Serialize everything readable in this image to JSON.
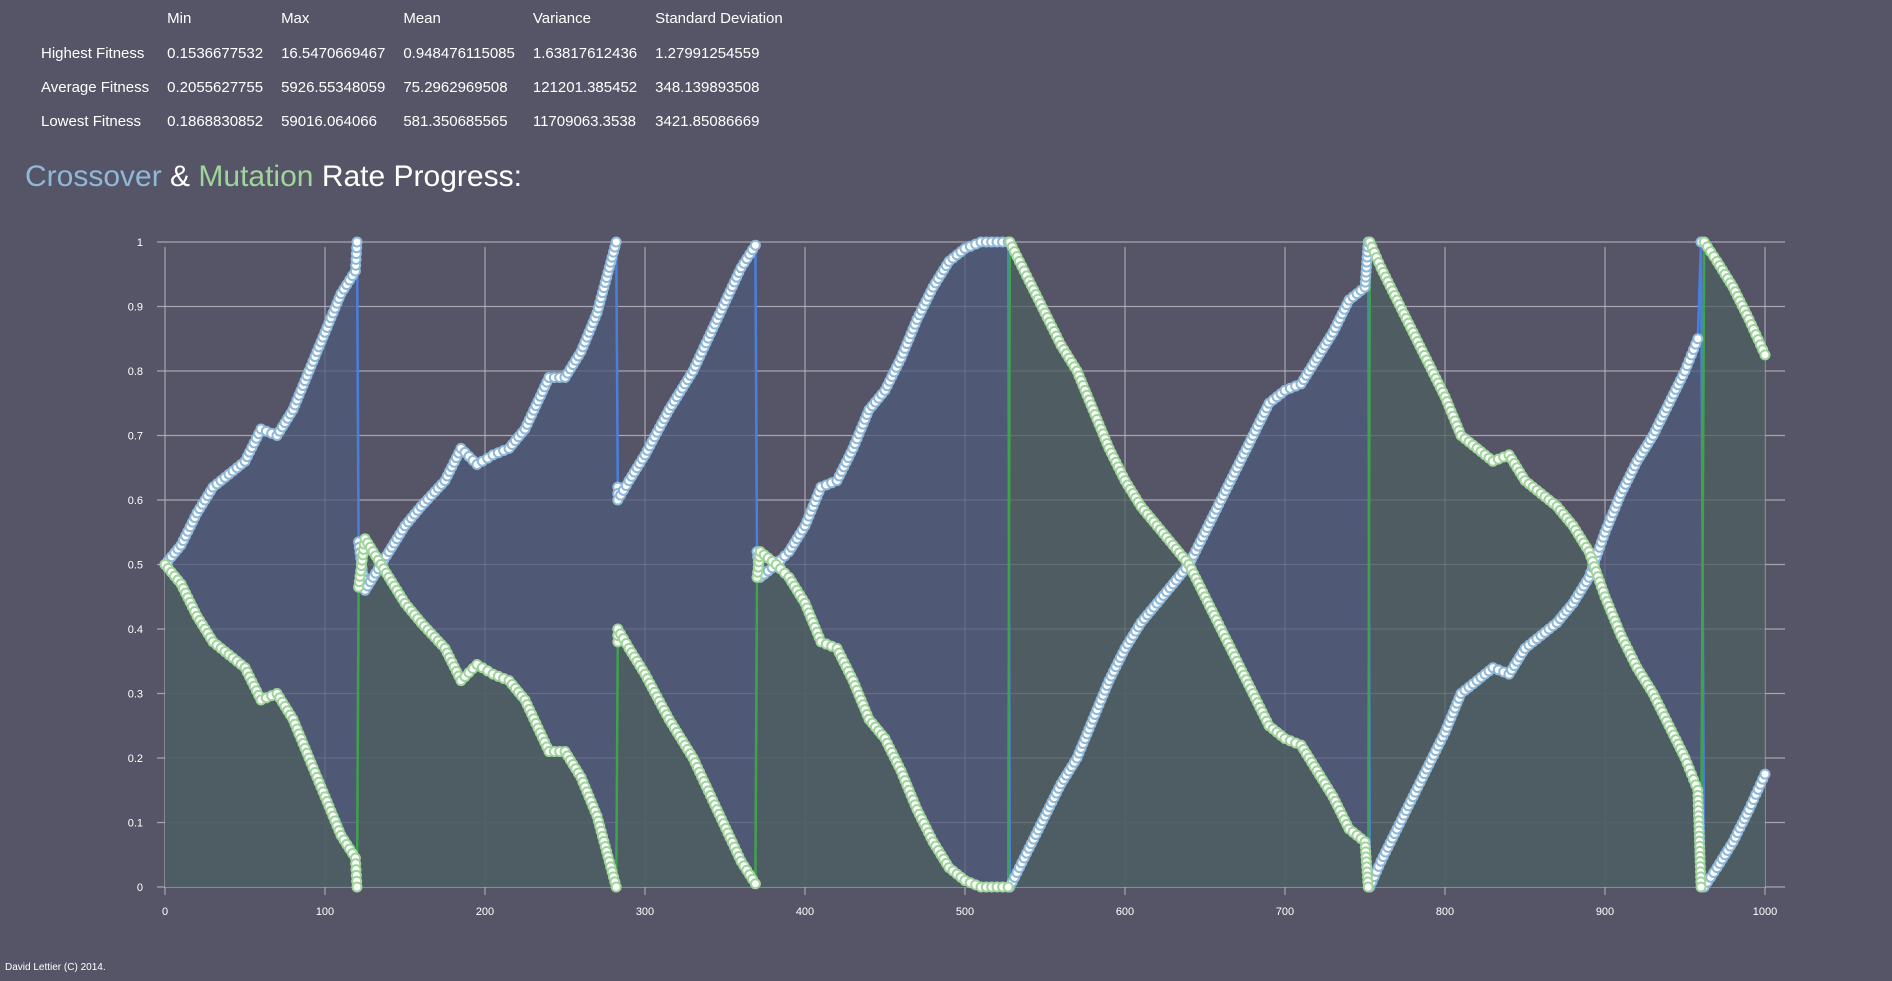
{
  "stats": {
    "columns": [
      "",
      "Min",
      "Max",
      "Mean",
      "Variance",
      "Standard Deviation"
    ],
    "rows": [
      {
        "label": "Highest Fitness",
        "values": [
          "0.1536677532",
          "16.5470669467",
          "0.948476115085",
          "1.63817612436",
          "1.27991254559"
        ]
      },
      {
        "label": "Average Fitness",
        "values": [
          "0.2055627755",
          "5926.55348059",
          "75.2962969508",
          "121201.385452",
          "348.139893508"
        ]
      },
      {
        "label": "Lowest Fitness",
        "values": [
          "0.1868830852",
          "59016.064066",
          "581.350685565",
          "11709063.3538",
          "3421.85086669"
        ]
      }
    ]
  },
  "heading": {
    "crossover": "Crossover",
    "amp": "&",
    "mutation": "Mutation",
    "rest": "Rate Progress:"
  },
  "colors": {
    "background": "#565567",
    "crossover": "#8fb8d8",
    "mutation": "#9fd49a",
    "crossover_line": "#4a7fe0",
    "mutation_line": "#3fa34a",
    "crossover_fill": "#4e5a78",
    "mutation_fill": "#4d5f5f",
    "grid": "#b4b4bc"
  },
  "chart_data": {
    "type": "area",
    "x_range": [
      0,
      1000
    ],
    "y_range": [
      0,
      1
    ],
    "x_ticks": [
      "0",
      "100",
      "200",
      "300",
      "400",
      "500",
      "600",
      "700",
      "800",
      "900",
      "1000"
    ],
    "y_ticks": [
      "0",
      "0.1",
      "0.2",
      "0.3",
      "0.4",
      "0.5",
      "0.6",
      "0.7",
      "0.8",
      "0.9",
      "1"
    ],
    "grid": true,
    "series": [
      {
        "key": "crossover",
        "points": [
          [
            0,
            0.5
          ],
          [
            10,
            0.53
          ],
          [
            20,
            0.58
          ],
          [
            30,
            0.62
          ],
          [
            40,
            0.64
          ],
          [
            50,
            0.66
          ],
          [
            60,
            0.71
          ],
          [
            70,
            0.7
          ],
          [
            80,
            0.74
          ],
          [
            90,
            0.8
          ],
          [
            100,
            0.86
          ],
          [
            110,
            0.92
          ],
          [
            119,
            0.955
          ],
          [
            120,
            1.0
          ],
          [
            121,
            0.535
          ],
          [
            125,
            0.46
          ],
          [
            135,
            0.5
          ],
          [
            150,
            0.56
          ],
          [
            160,
            0.59
          ],
          [
            175,
            0.63
          ],
          [
            185,
            0.68
          ],
          [
            195,
            0.655
          ],
          [
            205,
            0.67
          ],
          [
            215,
            0.68
          ],
          [
            225,
            0.71
          ],
          [
            240,
            0.79
          ],
          [
            250,
            0.79
          ],
          [
            260,
            0.83
          ],
          [
            270,
            0.89
          ],
          [
            282,
            1.0
          ],
          [
            283,
            0.62
          ],
          [
            283,
            0.6
          ],
          [
            290,
            0.63
          ],
          [
            300,
            0.67
          ],
          [
            315,
            0.74
          ],
          [
            330,
            0.8
          ],
          [
            345,
            0.88
          ],
          [
            360,
            0.96
          ],
          [
            369,
            0.995
          ],
          [
            370,
            0.52
          ],
          [
            372,
            0.48
          ],
          [
            382,
            0.5
          ],
          [
            390,
            0.52
          ],
          [
            400,
            0.56
          ],
          [
            410,
            0.62
          ],
          [
            420,
            0.63
          ],
          [
            430,
            0.68
          ],
          [
            440,
            0.74
          ],
          [
            450,
            0.77
          ],
          [
            460,
            0.82
          ],
          [
            470,
            0.88
          ],
          [
            480,
            0.93
          ],
          [
            490,
            0.97
          ],
          [
            500,
            0.99
          ],
          [
            510,
            1.0
          ],
          [
            520,
            1.0
          ],
          [
            527,
            1.0
          ],
          [
            528,
            0.0
          ],
          [
            540,
            0.06
          ],
          [
            550,
            0.11
          ],
          [
            560,
            0.16
          ],
          [
            570,
            0.2
          ],
          [
            580,
            0.26
          ],
          [
            590,
            0.32
          ],
          [
            600,
            0.37
          ],
          [
            610,
            0.41
          ],
          [
            620,
            0.44
          ],
          [
            630,
            0.47
          ],
          [
            640,
            0.5
          ],
          [
            650,
            0.55
          ],
          [
            660,
            0.6
          ],
          [
            670,
            0.65
          ],
          [
            680,
            0.7
          ],
          [
            690,
            0.75
          ],
          [
            700,
            0.77
          ],
          [
            710,
            0.78
          ],
          [
            720,
            0.82
          ],
          [
            730,
            0.86
          ],
          [
            740,
            0.91
          ],
          [
            750,
            0.93
          ],
          [
            752,
            1.0
          ],
          [
            753,
            0.0
          ],
          [
            760,
            0.04
          ],
          [
            770,
            0.09
          ],
          [
            780,
            0.14
          ],
          [
            790,
            0.19
          ],
          [
            800,
            0.24
          ],
          [
            810,
            0.3
          ],
          [
            820,
            0.32
          ],
          [
            830,
            0.34
          ],
          [
            840,
            0.33
          ],
          [
            850,
            0.37
          ],
          [
            860,
            0.39
          ],
          [
            870,
            0.41
          ],
          [
            880,
            0.44
          ],
          [
            890,
            0.48
          ],
          [
            900,
            0.55
          ],
          [
            910,
            0.61
          ],
          [
            920,
            0.66
          ],
          [
            930,
            0.7
          ],
          [
            940,
            0.75
          ],
          [
            950,
            0.8
          ],
          [
            958,
            0.85
          ],
          [
            960,
            1.0
          ],
          [
            962,
            0.0
          ],
          [
            970,
            0.03
          ],
          [
            980,
            0.07
          ],
          [
            990,
            0.12
          ],
          [
            1000,
            0.175
          ]
        ]
      },
      {
        "key": "mutation",
        "points": [
          [
            0,
            0.5
          ],
          [
            10,
            0.47
          ],
          [
            20,
            0.42
          ],
          [
            30,
            0.38
          ],
          [
            40,
            0.36
          ],
          [
            50,
            0.34
          ],
          [
            60,
            0.29
          ],
          [
            70,
            0.3
          ],
          [
            80,
            0.26
          ],
          [
            90,
            0.2
          ],
          [
            100,
            0.14
          ],
          [
            110,
            0.08
          ],
          [
            119,
            0.045
          ],
          [
            120,
            0.0
          ],
          [
            121,
            0.465
          ],
          [
            125,
            0.54
          ],
          [
            135,
            0.5
          ],
          [
            150,
            0.44
          ],
          [
            160,
            0.41
          ],
          [
            175,
            0.37
          ],
          [
            185,
            0.32
          ],
          [
            195,
            0.345
          ],
          [
            205,
            0.33
          ],
          [
            215,
            0.32
          ],
          [
            225,
            0.29
          ],
          [
            240,
            0.21
          ],
          [
            250,
            0.21
          ],
          [
            260,
            0.17
          ],
          [
            270,
            0.11
          ],
          [
            282,
            0.0
          ],
          [
            283,
            0.38
          ],
          [
            283,
            0.4
          ],
          [
            290,
            0.37
          ],
          [
            300,
            0.33
          ],
          [
            315,
            0.26
          ],
          [
            330,
            0.2
          ],
          [
            345,
            0.12
          ],
          [
            360,
            0.04
          ],
          [
            369,
            0.005
          ],
          [
            370,
            0.48
          ],
          [
            372,
            0.52
          ],
          [
            382,
            0.5
          ],
          [
            390,
            0.48
          ],
          [
            400,
            0.44
          ],
          [
            410,
            0.38
          ],
          [
            420,
            0.37
          ],
          [
            430,
            0.32
          ],
          [
            440,
            0.26
          ],
          [
            450,
            0.23
          ],
          [
            460,
            0.18
          ],
          [
            470,
            0.12
          ],
          [
            480,
            0.07
          ],
          [
            490,
            0.03
          ],
          [
            500,
            0.01
          ],
          [
            510,
            0.0
          ],
          [
            520,
            0.0
          ],
          [
            527,
            0.0
          ],
          [
            528,
            1.0
          ],
          [
            540,
            0.94
          ],
          [
            550,
            0.89
          ],
          [
            560,
            0.84
          ],
          [
            570,
            0.8
          ],
          [
            580,
            0.74
          ],
          [
            590,
            0.68
          ],
          [
            600,
            0.63
          ],
          [
            610,
            0.59
          ],
          [
            620,
            0.56
          ],
          [
            630,
            0.53
          ],
          [
            640,
            0.5
          ],
          [
            650,
            0.45
          ],
          [
            660,
            0.4
          ],
          [
            670,
            0.35
          ],
          [
            680,
            0.3
          ],
          [
            690,
            0.25
          ],
          [
            700,
            0.23
          ],
          [
            710,
            0.22
          ],
          [
            720,
            0.18
          ],
          [
            730,
            0.14
          ],
          [
            740,
            0.09
          ],
          [
            750,
            0.07
          ],
          [
            752,
            0.0
          ],
          [
            753,
            1.0
          ],
          [
            760,
            0.96
          ],
          [
            770,
            0.91
          ],
          [
            780,
            0.86
          ],
          [
            790,
            0.81
          ],
          [
            800,
            0.76
          ],
          [
            810,
            0.7
          ],
          [
            820,
            0.68
          ],
          [
            830,
            0.66
          ],
          [
            840,
            0.67
          ],
          [
            850,
            0.63
          ],
          [
            860,
            0.61
          ],
          [
            870,
            0.59
          ],
          [
            880,
            0.56
          ],
          [
            890,
            0.52
          ],
          [
            900,
            0.45
          ],
          [
            910,
            0.39
          ],
          [
            920,
            0.34
          ],
          [
            930,
            0.3
          ],
          [
            940,
            0.25
          ],
          [
            950,
            0.2
          ],
          [
            958,
            0.15
          ],
          [
            960,
            0.0
          ],
          [
            962,
            1.0
          ],
          [
            970,
            0.97
          ],
          [
            980,
            0.93
          ],
          [
            990,
            0.88
          ],
          [
            1000,
            0.825
          ]
        ]
      }
    ]
  },
  "footer": "David Lettier (C) 2014."
}
